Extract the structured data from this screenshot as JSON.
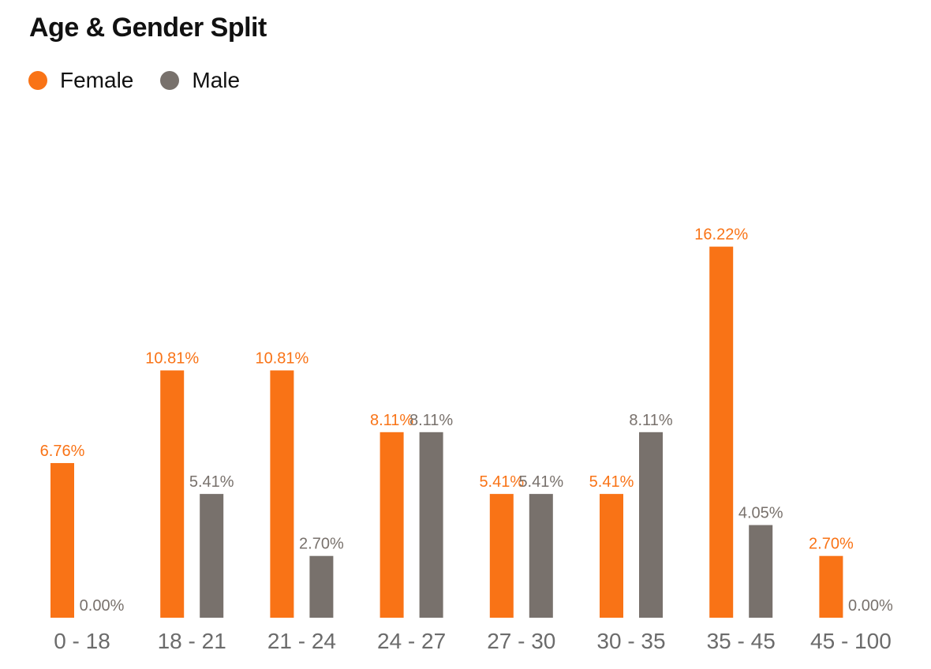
{
  "chart_data": {
    "type": "bar",
    "title": "Age & Gender Split",
    "categories": [
      "0 - 18",
      "18 - 21",
      "21 - 24",
      "24 - 27",
      "27 - 30",
      "30 - 35",
      "35 - 45",
      "45 - 100"
    ],
    "series": [
      {
        "name": "Female",
        "color": "#F97316",
        "values": [
          6.76,
          10.81,
          10.81,
          8.11,
          5.41,
          5.41,
          16.22,
          2.7
        ]
      },
      {
        "name": "Male",
        "color": "#78716C",
        "values": [
          0.0,
          5.41,
          2.7,
          8.11,
          5.41,
          8.11,
          4.05,
          0.0
        ]
      }
    ],
    "value_format": "percent, 2 decimals",
    "ylim": [
      0,
      18
    ],
    "grid": false,
    "legend_position": "top-left"
  }
}
